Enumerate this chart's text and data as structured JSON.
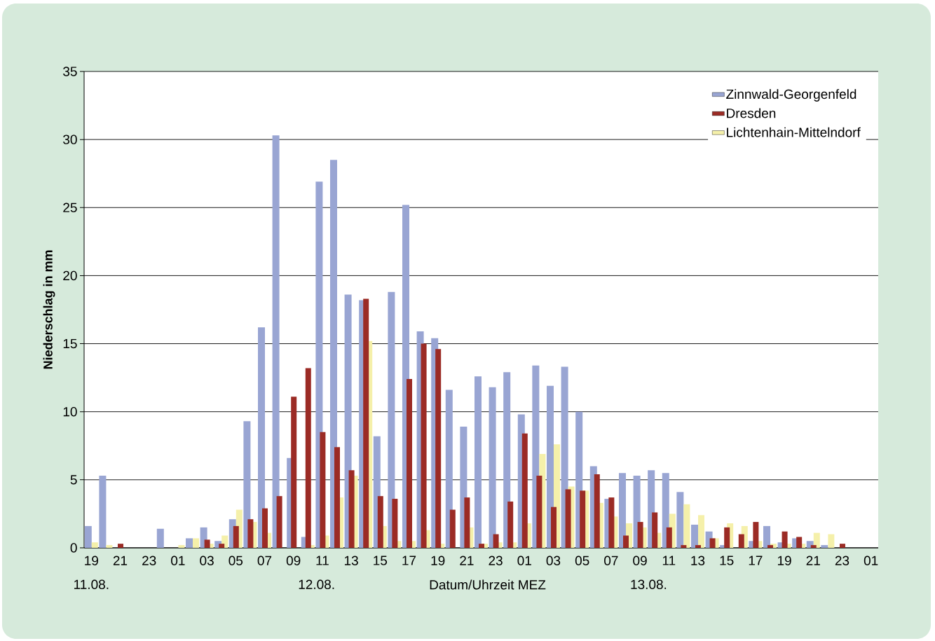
{
  "chart_data": {
    "type": "bar",
    "xlabel": "Datum/Uhrzeit MEZ",
    "ylabel": "Niederschlag in mm",
    "categories": [
      "19",
      null,
      "21",
      null,
      "23",
      null,
      "01",
      null,
      "03",
      null,
      "05",
      null,
      "07",
      null,
      "09",
      null,
      "11",
      null,
      "13",
      null,
      "15",
      null,
      "17",
      null,
      "19",
      null,
      "21",
      null,
      "23",
      null,
      "01",
      null,
      "03",
      null,
      "05",
      null,
      "07",
      null,
      "09",
      null,
      "11",
      null,
      "13",
      null,
      "15",
      null,
      "17",
      null,
      "19",
      null,
      "21",
      null,
      "23",
      null,
      "01"
    ],
    "series": [
      {
        "name": "Zinnwald-Georgenfeld",
        "color": "#99a5d3",
        "values": [
          1.6,
          5.3,
          0,
          0,
          0,
          1.4,
          0,
          0.7,
          1.5,
          0.5,
          2.1,
          9.3,
          16.2,
          30.3,
          6.6,
          0.8,
          26.9,
          28.5,
          18.6,
          18.2,
          8.2,
          18.8,
          25.2,
          15.9,
          15.4,
          11.6,
          8.9,
          12.6,
          11.8,
          12.9,
          9.8,
          13.4,
          11.9,
          13.3,
          10.0,
          6.0,
          3.6,
          5.5,
          5.3,
          5.7,
          5.5,
          4.1,
          1.7,
          1.2,
          0.2,
          0,
          0.5,
          1.6,
          0.4,
          0.7,
          0.5,
          0.2,
          0,
          0,
          0
        ]
      },
      {
        "name": "Dresden",
        "color": "#9b2b25",
        "values": [
          0,
          0,
          0.3,
          0,
          0,
          0,
          0,
          0,
          0.6,
          0.3,
          1.6,
          2.1,
          2.9,
          3.8,
          11.1,
          13.2,
          8.5,
          7.4,
          5.7,
          18.3,
          3.8,
          3.6,
          12.4,
          15.0,
          14.6,
          2.8,
          3.7,
          0.3,
          1.0,
          3.4,
          8.4,
          5.3,
          3.0,
          4.3,
          4.2,
          5.4,
          3.7,
          0.9,
          1.9,
          2.6,
          1.5,
          0.2,
          0.2,
          0.7,
          1.5,
          1.0,
          1.9,
          0.2,
          1.2,
          0.8,
          0.2,
          0,
          0.3,
          0,
          0
        ]
      },
      {
        "name": "Lichtenhain-Mittelndorf",
        "color": "#f5f0aa",
        "values": [
          0.4,
          0.2,
          0,
          0,
          0,
          0,
          0.2,
          0.7,
          0.3,
          0.9,
          2.8,
          1.9,
          1.1,
          0,
          0,
          0.2,
          0.9,
          3.7,
          5.3,
          15.2,
          1.6,
          0.5,
          0.5,
          1.3,
          0.3,
          0,
          1.5,
          0.3,
          0.4,
          0.4,
          1.8,
          6.9,
          7.6,
          4.5,
          4.2,
          3.3,
          2.3,
          1.8,
          1.5,
          1.1,
          2.5,
          3.2,
          2.4,
          0.7,
          1.8,
          1.6,
          0.5,
          0.3,
          0.3,
          0.3,
          1.1,
          1.0,
          0,
          0,
          0
        ]
      }
    ],
    "ylim": [
      0,
      35
    ],
    "yticks": [
      0,
      5,
      10,
      15,
      20,
      25,
      30,
      35
    ],
    "grid": "y",
    "legend": "top right",
    "annotations": [
      "11.08.",
      "12.08.",
      "13.08."
    ]
  }
}
